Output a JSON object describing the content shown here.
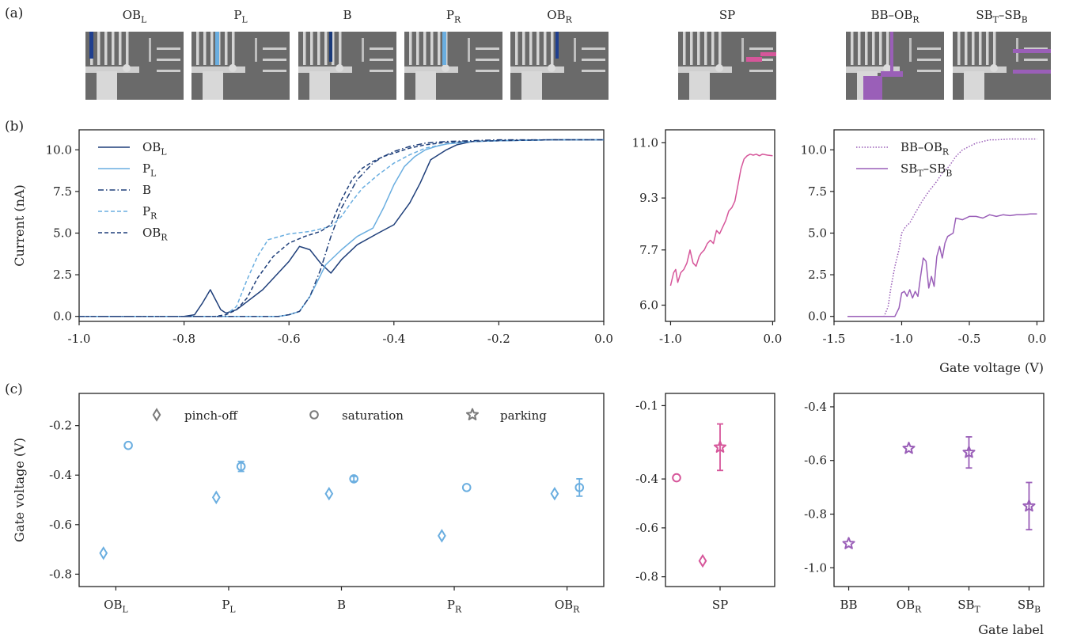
{
  "panel_labels": {
    "a": "(a)",
    "b": "(b)",
    "c": "(c)"
  },
  "thumbnails": [
    {
      "label": "OB",
      "sub": "L",
      "highlight": "#1f3f8f",
      "kind": "left-finger"
    },
    {
      "label": "P",
      "sub": "L",
      "highlight": "#6aaee0",
      "kind": "plunger"
    },
    {
      "label": "B",
      "sub": "",
      "highlight": "#1a3a7a",
      "kind": "center-finger"
    },
    {
      "label": "P",
      "sub": "R",
      "highlight": "#6aaee0",
      "kind": "plunger-right"
    },
    {
      "label": "OB",
      "sub": "R",
      "highlight": "#1f3f8f",
      "kind": "right-finger"
    },
    {
      "label": "SP",
      "sub": "",
      "highlight": "#d6569a",
      "kind": "sensor"
    },
    {
      "label": "BB–OB",
      "sub": "R",
      "highlight": "#9a5fb8",
      "kind": "bottom"
    },
    {
      "label": "SB",
      "sub": "T",
      "label2": "–SB",
      "sub2": "B",
      "highlight": "#9a5fb8",
      "kind": "sensor-barriers"
    }
  ],
  "colors": {
    "navy": "#1f3f7a",
    "light_blue": "#6aaee0",
    "mid_blue": "#4d93cf",
    "pink": "#d6569a",
    "purple": "#9a5fb8",
    "gray": "#7a7a7a"
  },
  "chart_data": [
    {
      "id": "b-left",
      "type": "line",
      "ylabel": "Current (nA)",
      "xlim": [
        -1.0,
        0.0
      ],
      "ylim": [
        -0.3,
        11.2
      ],
      "xticks": [
        "-1.0",
        "-0.8",
        "-0.6",
        "-0.4",
        "-0.2",
        "0.0"
      ],
      "yticks": [
        "0.0",
        "2.5",
        "5.0",
        "7.5",
        "10.0"
      ],
      "legend_position": "upper-left",
      "series": [
        {
          "name": "OB",
          "sub": "L",
          "style": "solid",
          "color": "#1f3f7a",
          "x": [
            -1.0,
            -0.8,
            -0.78,
            -0.765,
            -0.75,
            -0.74,
            -0.73,
            -0.72,
            -0.7,
            -0.65,
            -0.6,
            -0.58,
            -0.56,
            -0.54,
            -0.52,
            -0.5,
            -0.47,
            -0.43,
            -0.4,
            -0.37,
            -0.35,
            -0.33,
            -0.3,
            -0.28,
            -0.25,
            -0.2,
            -0.1,
            0.0
          ],
          "y": [
            0.0,
            0.0,
            0.1,
            0.8,
            1.6,
            1.0,
            0.4,
            0.2,
            0.4,
            1.6,
            3.3,
            4.2,
            4.0,
            3.2,
            2.6,
            3.4,
            4.3,
            5.0,
            5.5,
            6.8,
            8.0,
            9.4,
            10.0,
            10.3,
            10.5,
            10.55,
            10.6,
            10.6
          ]
        },
        {
          "name": "P",
          "sub": "L",
          "style": "solid",
          "color": "#6aaee0",
          "x": [
            -1.0,
            -0.62,
            -0.6,
            -0.58,
            -0.56,
            -0.53,
            -0.5,
            -0.47,
            -0.44,
            -0.42,
            -0.4,
            -0.38,
            -0.36,
            -0.34,
            -0.32,
            -0.3,
            -0.25,
            -0.2,
            -0.1,
            0.0
          ],
          "y": [
            0.0,
            0.0,
            0.1,
            0.3,
            1.2,
            3.1,
            4.0,
            4.8,
            5.3,
            6.5,
            7.9,
            9.0,
            9.6,
            10.0,
            10.2,
            10.35,
            10.5,
            10.55,
            10.6,
            10.6
          ]
        },
        {
          "name": "B",
          "sub": "",
          "style": "dashdot",
          "color": "#1f3f7a",
          "x": [
            -1.0,
            -0.62,
            -0.6,
            -0.58,
            -0.56,
            -0.54,
            -0.52,
            -0.5,
            -0.47,
            -0.44,
            -0.42,
            -0.4,
            -0.37,
            -0.34,
            -0.3,
            -0.25,
            -0.2,
            -0.1,
            0.0
          ],
          "y": [
            0.0,
            0.0,
            0.1,
            0.3,
            1.2,
            2.8,
            4.8,
            6.5,
            8.2,
            9.2,
            9.6,
            9.9,
            10.2,
            10.4,
            10.5,
            10.55,
            10.6,
            10.6,
            10.6
          ]
        },
        {
          "name": "P",
          "sub": "R",
          "style": "dashed",
          "color": "#6aaee0",
          "x": [
            -1.0,
            -0.74,
            -0.72,
            -0.7,
            -0.68,
            -0.66,
            -0.64,
            -0.6,
            -0.56,
            -0.52,
            -0.5,
            -0.48,
            -0.46,
            -0.43,
            -0.4,
            -0.37,
            -0.34,
            -0.3,
            -0.25,
            -0.2,
            -0.1,
            0.0
          ],
          "y": [
            0.0,
            0.0,
            0.1,
            0.6,
            2.2,
            3.6,
            4.6,
            4.95,
            5.1,
            5.4,
            6.0,
            6.9,
            7.7,
            8.5,
            9.2,
            9.7,
            10.1,
            10.35,
            10.5,
            10.55,
            10.6,
            10.6
          ]
        },
        {
          "name": "OB",
          "sub": "R",
          "style": "dashed",
          "color": "#1f3f7a",
          "x": [
            -1.0,
            -0.74,
            -0.72,
            -0.7,
            -0.68,
            -0.66,
            -0.63,
            -0.6,
            -0.57,
            -0.54,
            -0.52,
            -0.5,
            -0.48,
            -0.46,
            -0.44,
            -0.42,
            -0.4,
            -0.37,
            -0.34,
            -0.3,
            -0.25,
            -0.2,
            -0.1,
            0.0
          ],
          "y": [
            0.0,
            0.0,
            0.1,
            0.4,
            1.1,
            2.3,
            3.6,
            4.4,
            4.8,
            5.1,
            5.5,
            7.0,
            8.2,
            8.9,
            9.3,
            9.6,
            9.8,
            10.1,
            10.3,
            10.45,
            10.5,
            10.55,
            10.6,
            10.6
          ]
        }
      ]
    },
    {
      "id": "b-mid",
      "type": "line",
      "xlim": [
        -1.05,
        0.02
      ],
      "ylim": [
        5.5,
        11.4
      ],
      "xticks": [
        "-1.0",
        "0.0"
      ],
      "yticks": [
        "6.0",
        "7.7",
        "9.3",
        "11.0"
      ],
      "series": [
        {
          "name": "SP",
          "style": "solid",
          "color": "#d6569a",
          "x": [
            -1.0,
            -0.97,
            -0.95,
            -0.93,
            -0.9,
            -0.87,
            -0.84,
            -0.81,
            -0.78,
            -0.75,
            -0.72,
            -0.7,
            -0.67,
            -0.64,
            -0.61,
            -0.58,
            -0.55,
            -0.52,
            -0.49,
            -0.46,
            -0.43,
            -0.4,
            -0.37,
            -0.34,
            -0.31,
            -0.28,
            -0.25,
            -0.22,
            -0.19,
            -0.16,
            -0.13,
            -0.1,
            -0.05,
            0.0
          ],
          "y": [
            6.6,
            7.0,
            7.1,
            6.7,
            7.0,
            7.1,
            7.3,
            7.7,
            7.3,
            7.2,
            7.5,
            7.6,
            7.7,
            7.9,
            8.0,
            7.9,
            8.3,
            8.2,
            8.4,
            8.6,
            8.9,
            9.0,
            9.2,
            9.7,
            10.2,
            10.5,
            10.6,
            10.65,
            10.62,
            10.65,
            10.6,
            10.65,
            10.62,
            10.6
          ]
        }
      ]
    },
    {
      "id": "b-right",
      "type": "line",
      "xlabel": "Gate voltage (V)",
      "xlim": [
        -1.5,
        0.05
      ],
      "ylim": [
        -0.3,
        11.2
      ],
      "xticks": [
        "-1.5",
        "-1.0",
        "-0.5",
        "0.0"
      ],
      "yticks": [
        "0.0",
        "2.5",
        "5.0",
        "7.5",
        "10.0"
      ],
      "legend_position": "upper-right",
      "series": [
        {
          "name": "BB–OB",
          "sub": "R",
          "style": "dotted",
          "color": "#9a5fb8",
          "x": [
            -1.4,
            -1.13,
            -1.1,
            -1.08,
            -1.05,
            -1.02,
            -1.0,
            -0.97,
            -0.94,
            -0.9,
            -0.85,
            -0.8,
            -0.75,
            -0.7,
            -0.65,
            -0.6,
            -0.55,
            -0.5,
            -0.45,
            -0.4,
            -0.35,
            -0.3,
            -0.2,
            -0.1,
            0.0
          ],
          "y": [
            0.0,
            0.0,
            0.6,
            1.7,
            3.0,
            4.0,
            5.0,
            5.4,
            5.6,
            6.2,
            6.9,
            7.5,
            8.0,
            8.6,
            9.0,
            9.6,
            10.0,
            10.2,
            10.4,
            10.5,
            10.6,
            10.6,
            10.65,
            10.65,
            10.65
          ]
        },
        {
          "name": "SB",
          "sub": "T",
          "name2": "–SB",
          "sub2": "B",
          "style": "solid",
          "color": "#9a5fb8",
          "x": [
            -1.4,
            -1.05,
            -1.02,
            -1.0,
            -0.98,
            -0.96,
            -0.94,
            -0.92,
            -0.9,
            -0.88,
            -0.86,
            -0.84,
            -0.82,
            -0.8,
            -0.78,
            -0.76,
            -0.74,
            -0.72,
            -0.7,
            -0.68,
            -0.66,
            -0.64,
            -0.62,
            -0.6,
            -0.55,
            -0.5,
            -0.45,
            -0.4,
            -0.35,
            -0.3,
            -0.25,
            -0.2,
            -0.15,
            -0.1,
            -0.05,
            0.0
          ],
          "y": [
            0.0,
            0.0,
            0.5,
            1.4,
            1.5,
            1.2,
            1.6,
            1.1,
            1.5,
            1.2,
            2.4,
            3.5,
            3.3,
            1.7,
            2.4,
            1.8,
            3.6,
            4.2,
            3.5,
            4.4,
            4.8,
            4.9,
            5.0,
            5.9,
            5.8,
            6.0,
            6.0,
            5.9,
            6.1,
            6.0,
            6.1,
            6.05,
            6.1,
            6.1,
            6.15,
            6.15
          ]
        }
      ]
    },
    {
      "id": "c-left",
      "type": "scatter",
      "ylabel": "Gate voltage (V)",
      "ylim": [
        -0.85,
        -0.07
      ],
      "yticks": [
        "-0.8",
        "-0.6",
        "-0.4",
        "-0.2"
      ],
      "categories": [
        {
          "label": "OB",
          "sub": "L"
        },
        {
          "label": "P",
          "sub": "L"
        },
        {
          "label": "B",
          "sub": ""
        },
        {
          "label": "P",
          "sub": "R"
        },
        {
          "label": "OB",
          "sub": "R"
        }
      ],
      "legend": [
        {
          "marker": "diamond",
          "label": "pinch-off"
        },
        {
          "marker": "circle",
          "label": "saturation"
        },
        {
          "marker": "star",
          "label": "parking"
        }
      ],
      "points": [
        {
          "cat": 0,
          "offset": -0.2,
          "marker": "diamond",
          "y": -0.715,
          "err": 0
        },
        {
          "cat": 0,
          "offset": 0.2,
          "marker": "circle",
          "y": -0.28,
          "err": 0
        },
        {
          "cat": 1,
          "offset": -0.2,
          "marker": "diamond",
          "y": -0.49,
          "err": 0
        },
        {
          "cat": 1,
          "offset": 0.2,
          "marker": "circle",
          "y": -0.365,
          "err": 0.02
        },
        {
          "cat": 2,
          "offset": -0.2,
          "marker": "diamond",
          "y": -0.475,
          "err": 0
        },
        {
          "cat": 2,
          "offset": 0.2,
          "marker": "circle",
          "y": -0.415,
          "err": 0.01
        },
        {
          "cat": 3,
          "offset": -0.2,
          "marker": "diamond",
          "y": -0.645,
          "err": 0
        },
        {
          "cat": 3,
          "offset": 0.2,
          "marker": "circle",
          "y": -0.45,
          "err": 0
        },
        {
          "cat": 4,
          "offset": -0.2,
          "marker": "diamond",
          "y": -0.475,
          "err": 0
        },
        {
          "cat": 4,
          "offset": 0.2,
          "marker": "circle",
          "y": -0.45,
          "err": 0.035
        }
      ]
    },
    {
      "id": "c-mid",
      "type": "scatter",
      "ylim": [
        -0.84,
        -0.05
      ],
      "yticks": [
        "-0.8",
        "-0.6",
        "-0.4",
        "-0.1"
      ],
      "categories": [
        {
          "label": "SP",
          "sub": ""
        }
      ],
      "points": [
        {
          "cat": 0,
          "offset": -0.25,
          "marker": "circle",
          "y": -0.395,
          "err": 0
        },
        {
          "cat": 0,
          "offset": -0.1,
          "marker": "diamond",
          "y": -0.735,
          "err": 0
        },
        {
          "cat": 0,
          "offset": 0.0,
          "marker": "star",
          "y": -0.27,
          "err": 0.095
        }
      ]
    },
    {
      "id": "c-right",
      "type": "scatter",
      "xlabel": "Gate label",
      "ylim": [
        -1.07,
        -0.35
      ],
      "yticks": [
        "-1.0",
        "-0.8",
        "-0.6",
        "-0.4"
      ],
      "categories": [
        {
          "label": "BB",
          "sub": ""
        },
        {
          "label": "OB",
          "sub": "R"
        },
        {
          "label": "SB",
          "sub": "T"
        },
        {
          "label": "SB",
          "sub": "B"
        }
      ],
      "points": [
        {
          "cat": 0,
          "offset": 0,
          "marker": "star",
          "y": -0.91,
          "err": 0
        },
        {
          "cat": 1,
          "offset": 0,
          "marker": "star",
          "y": -0.555,
          "err": 0
        },
        {
          "cat": 2,
          "offset": 0,
          "marker": "star",
          "y": -0.57,
          "err": 0.058
        },
        {
          "cat": 3,
          "offset": 0,
          "marker": "star",
          "y": -0.77,
          "err": 0.088
        }
      ]
    }
  ]
}
